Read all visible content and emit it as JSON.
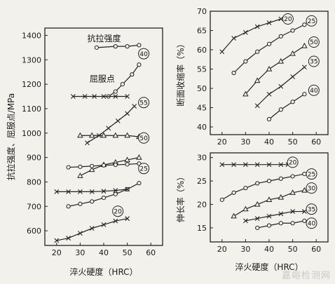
{
  "chart_data": [
    {
      "type": "line",
      "title": "",
      "xlabel": "淬火硬度（HRC）",
      "ylabel": "抗拉强度、屈服点/MPa",
      "xlim": [
        15,
        65
      ],
      "ylim": [
        540,
        1430
      ],
      "xticks": [
        20,
        30,
        40,
        50,
        60
      ],
      "yticks": [
        600,
        700,
        800,
        900,
        1000,
        1100,
        1200,
        1300,
        1400
      ],
      "annotations": [
        {
          "text": "抗拉强度",
          "x": 33,
          "y": 1375
        },
        {
          "text": "屈服点",
          "x": 34,
          "y": 1210
        }
      ],
      "series": [
        {
          "name": "40",
          "property": "抗拉强度",
          "marker": "o",
          "x": [
            37,
            45,
            50,
            55
          ],
          "y": [
            1350,
            1355,
            1355,
            1360
          ]
        },
        {
          "name": "40",
          "property": "屈服点",
          "marker": "o",
          "x": [
            42,
            45,
            48,
            52,
            55
          ],
          "y": [
            1150,
            1170,
            1200,
            1240,
            1280
          ]
        },
        {
          "name": "55",
          "property": "抗拉强度",
          "marker": "x",
          "x": [
            27,
            32,
            36,
            40,
            45,
            50
          ],
          "y": [
            1150,
            1150,
            1150,
            1150,
            1150,
            1150
          ]
        },
        {
          "name": "55",
          "property": "屈服点",
          "marker": "x",
          "x": [
            33,
            38,
            42,
            46,
            50,
            53
          ],
          "y": [
            960,
            990,
            1020,
            1050,
            1080,
            1110
          ]
        },
        {
          "name": "50",
          "property": "抗拉强度",
          "marker": "^",
          "x": [
            30,
            35,
            40,
            45,
            50,
            55
          ],
          "y": [
            990,
            990,
            990,
            990,
            990,
            985
          ]
        },
        {
          "name": "50",
          "property": "屈服点",
          "marker": "^",
          "x": [
            30,
            35,
            40,
            45,
            50,
            55
          ],
          "y": [
            825,
            850,
            870,
            880,
            890,
            900
          ]
        },
        {
          "name": "25",
          "property": "抗拉强度",
          "marker": "o",
          "x": [
            25,
            30,
            35,
            40,
            45,
            50,
            55
          ],
          "y": [
            860,
            862,
            865,
            868,
            870,
            872,
            875
          ]
        },
        {
          "name": "25",
          "property": "屈服点",
          "marker": "o",
          "x": [
            25,
            30,
            35,
            40,
            45,
            50,
            55
          ],
          "y": [
            700,
            710,
            720,
            735,
            750,
            770,
            795
          ]
        },
        {
          "name": "20",
          "property": "抗拉强度",
          "marker": "x",
          "x": [
            20,
            25,
            30,
            35,
            40,
            45,
            50
          ],
          "y": [
            760,
            760,
            760,
            760,
            762,
            765,
            770
          ]
        },
        {
          "name": "20",
          "property": "屈服点",
          "marker": "x",
          "x": [
            20,
            25,
            30,
            35,
            40,
            45,
            50
          ],
          "y": [
            560,
            570,
            590,
            610,
            625,
            640,
            650
          ]
        }
      ],
      "series_labels": [
        {
          "text": "40",
          "x": 57,
          "y": 1325
        },
        {
          "text": "55",
          "x": 57,
          "y": 1125
        },
        {
          "text": "50",
          "x": 57,
          "y": 980
        },
        {
          "text": "25",
          "x": 57,
          "y": 855
        },
        {
          "text": "20",
          "x": 46,
          "y": 680
        }
      ]
    },
    {
      "type": "line",
      "title": "",
      "xlabel": "",
      "ylabel": "断面收缩率（%）",
      "xlim": [
        15,
        65
      ],
      "ylim": [
        38,
        70
      ],
      "xticks": [
        20,
        30,
        40,
        50,
        60
      ],
      "yticks": [
        40,
        45,
        50,
        55,
        60,
        65,
        70
      ],
      "series": [
        {
          "name": "20",
          "marker": "x",
          "x": [
            20,
            25,
            30,
            35,
            40,
            45
          ],
          "y": [
            59.5,
            63,
            64.5,
            66,
            67,
            68
          ]
        },
        {
          "name": "25",
          "marker": "o",
          "x": [
            25,
            30,
            35,
            40,
            45,
            50,
            55
          ],
          "y": [
            54,
            57,
            59.5,
            61.5,
            63.5,
            65,
            66.5
          ]
        },
        {
          "name": "50",
          "marker": "^",
          "x": [
            30,
            35,
            40,
            45,
            50,
            55
          ],
          "y": [
            48.5,
            52,
            55,
            57,
            59,
            61
          ]
        },
        {
          "name": "35",
          "marker": "x",
          "x": [
            35,
            40,
            45,
            50,
            55
          ],
          "y": [
            45.5,
            48.5,
            50.5,
            53,
            55.5
          ]
        },
        {
          "name": "40",
          "marker": "o",
          "x": [
            40,
            45,
            50,
            55
          ],
          "y": [
            42,
            44.5,
            46.5,
            48.5
          ]
        }
      ],
      "series_labels": [
        {
          "text": "20",
          "x": 48,
          "y": 68
        },
        {
          "text": "25",
          "x": 58,
          "y": 67.5
        },
        {
          "text": "50",
          "x": 59,
          "y": 62
        },
        {
          "text": "35",
          "x": 59,
          "y": 57
        },
        {
          "text": "40",
          "x": 59,
          "y": 49.5
        }
      ]
    },
    {
      "type": "line",
      "title": "",
      "xlabel": "淬火硬度（HRC）",
      "ylabel": "伸长率（%）",
      "xlim": [
        15,
        65
      ],
      "ylim": [
        12,
        31
      ],
      "xticks": [
        20,
        30,
        40,
        50,
        60
      ],
      "yticks": [
        15,
        20,
        25,
        30
      ],
      "series": [
        {
          "name": "20",
          "marker": "x",
          "x": [
            20,
            25,
            30,
            35,
            40,
            45,
            48
          ],
          "y": [
            28.5,
            28.5,
            28.5,
            28.5,
            28.5,
            28.5,
            28.5
          ]
        },
        {
          "name": "25",
          "marker": "o",
          "x": [
            20,
            25,
            30,
            35,
            40,
            45,
            50,
            55
          ],
          "y": [
            21,
            22.5,
            23.5,
            24.5,
            25,
            25.5,
            26,
            26.5
          ]
        },
        {
          "name": "30",
          "marker": "^",
          "x": [
            25,
            30,
            35,
            40,
            45,
            50,
            55
          ],
          "y": [
            17.5,
            19,
            20,
            21,
            21.5,
            22.5,
            23
          ]
        },
        {
          "name": "35",
          "marker": "x",
          "x": [
            30,
            35,
            40,
            45,
            50,
            55
          ],
          "y": [
            16.5,
            17,
            17.5,
            18,
            18.5,
            18.5
          ]
        },
        {
          "name": "40",
          "marker": "o",
          "x": [
            35,
            40,
            45,
            50,
            55
          ],
          "y": [
            15,
            15.5,
            16,
            16,
            16.5
          ]
        }
      ],
      "series_labels": [
        {
          "text": "20",
          "x": 50,
          "y": 29
        },
        {
          "text": "25",
          "x": 58,
          "y": 26.5
        },
        {
          "text": "30",
          "x": 58,
          "y": 23.5
        },
        {
          "text": "35",
          "x": 58,
          "y": 19
        },
        {
          "text": "40",
          "x": 58,
          "y": 16
        }
      ]
    }
  ],
  "watermark": "嘉峪检测网"
}
